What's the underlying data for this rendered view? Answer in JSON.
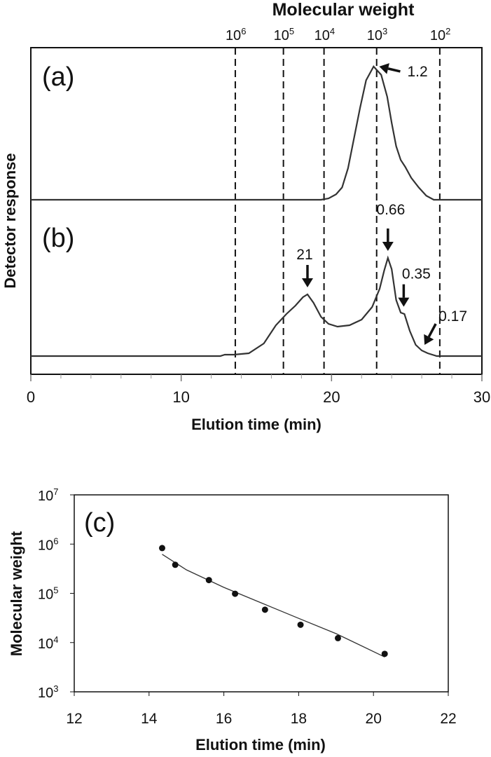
{
  "chart_data": [
    {
      "type": "line",
      "title": "Molecular weight",
      "xlabel": "Elution time (min)",
      "ylabel": "Detector response",
      "xlim": [
        0,
        30
      ],
      "x_ticks": [
        "0",
        "10",
        "20",
        "30"
      ],
      "mw_markers": [
        {
          "time": 13.6,
          "base": "10",
          "exp": "6"
        },
        {
          "time": 16.8,
          "base": "10",
          "exp": "5"
        },
        {
          "time": 19.5,
          "base": "10",
          "exp": "4"
        },
        {
          "time": 23.0,
          "base": "10",
          "exp": "3"
        },
        {
          "time": 27.2,
          "base": "10",
          "exp": "2"
        }
      ],
      "series": [
        {
          "name": "(a)",
          "points": [
            [
              0,
              1
            ],
            [
              19.3,
              1
            ],
            [
              19.8,
              2
            ],
            [
              20.3,
              5
            ],
            [
              20.7,
              10
            ],
            [
              21.1,
              24
            ],
            [
              21.5,
              46
            ],
            [
              21.9,
              68
            ],
            [
              22.3,
              88
            ],
            [
              22.8,
              98
            ],
            [
              23.3,
              92
            ],
            [
              23.7,
              76
            ],
            [
              24.0,
              57
            ],
            [
              24.3,
              40
            ],
            [
              24.6,
              30
            ],
            [
              24.9,
              25
            ],
            [
              25.3,
              17
            ],
            [
              25.8,
              10
            ],
            [
              26.3,
              4
            ],
            [
              26.8,
              1
            ],
            [
              30,
              1
            ]
          ],
          "annotations": [
            {
              "time": 22.8,
              "label": "1.2"
            }
          ]
        },
        {
          "name": "(b)",
          "points": [
            [
              0,
              0
            ],
            [
              12.6,
              0
            ],
            [
              12.9,
              1
            ],
            [
              13.5,
              1
            ],
            [
              14.5,
              2
            ],
            [
              15.5,
              9
            ],
            [
              16.3,
              22
            ],
            [
              17.0,
              30
            ],
            [
              17.6,
              36
            ],
            [
              18.1,
              42
            ],
            [
              18.4,
              44
            ],
            [
              18.8,
              38
            ],
            [
              19.3,
              28
            ],
            [
              19.8,
              23
            ],
            [
              20.4,
              21
            ],
            [
              21.2,
              22
            ],
            [
              22.0,
              26
            ],
            [
              22.7,
              35
            ],
            [
              23.2,
              48
            ],
            [
              23.5,
              61
            ],
            [
              23.75,
              70
            ],
            [
              24.0,
              62
            ],
            [
              24.3,
              40
            ],
            [
              24.6,
              31
            ],
            [
              24.85,
              30
            ],
            [
              25.2,
              18
            ],
            [
              25.6,
              8
            ],
            [
              26.0,
              4
            ],
            [
              26.4,
              2
            ],
            [
              27.0,
              0
            ],
            [
              30,
              0
            ]
          ],
          "annotations": [
            {
              "time": 18.4,
              "label": "21"
            },
            {
              "time": 23.75,
              "label": "0.66"
            },
            {
              "time": 24.8,
              "label": "0.35"
            },
            {
              "time": 26.0,
              "label": "0.17"
            }
          ]
        }
      ]
    },
    {
      "type": "scatter",
      "title": "",
      "panel": "(c)",
      "xlabel": "Elution time (min)",
      "ylabel": "Molecular weight",
      "xlim": [
        12,
        22
      ],
      "ylim_log10": [
        3,
        7
      ],
      "x_ticks": [
        "12",
        "14",
        "16",
        "18",
        "20",
        "22"
      ],
      "y_ticks": [
        {
          "base": "10",
          "exp": "3"
        },
        {
          "base": "10",
          "exp": "4"
        },
        {
          "base": "10",
          "exp": "5"
        },
        {
          "base": "10",
          "exp": "6"
        },
        {
          "base": "10",
          "exp": "7"
        }
      ],
      "points": [
        {
          "x": 14.35,
          "y": 830000
        },
        {
          "x": 14.7,
          "y": 380000
        },
        {
          "x": 15.6,
          "y": 186000
        },
        {
          "x": 16.3,
          "y": 98000
        },
        {
          "x": 17.1,
          "y": 46500
        },
        {
          "x": 18.05,
          "y": 23000
        },
        {
          "x": 19.05,
          "y": 12300
        },
        {
          "x": 20.3,
          "y": 5900
        }
      ],
      "fit": [
        [
          14.35,
          620000
        ],
        [
          15.0,
          300000
        ],
        [
          16.0,
          132000
        ],
        [
          17.0,
          64000
        ],
        [
          18.0,
          31000
        ],
        [
          19.0,
          15200
        ],
        [
          20.3,
          5100
        ]
      ]
    }
  ]
}
